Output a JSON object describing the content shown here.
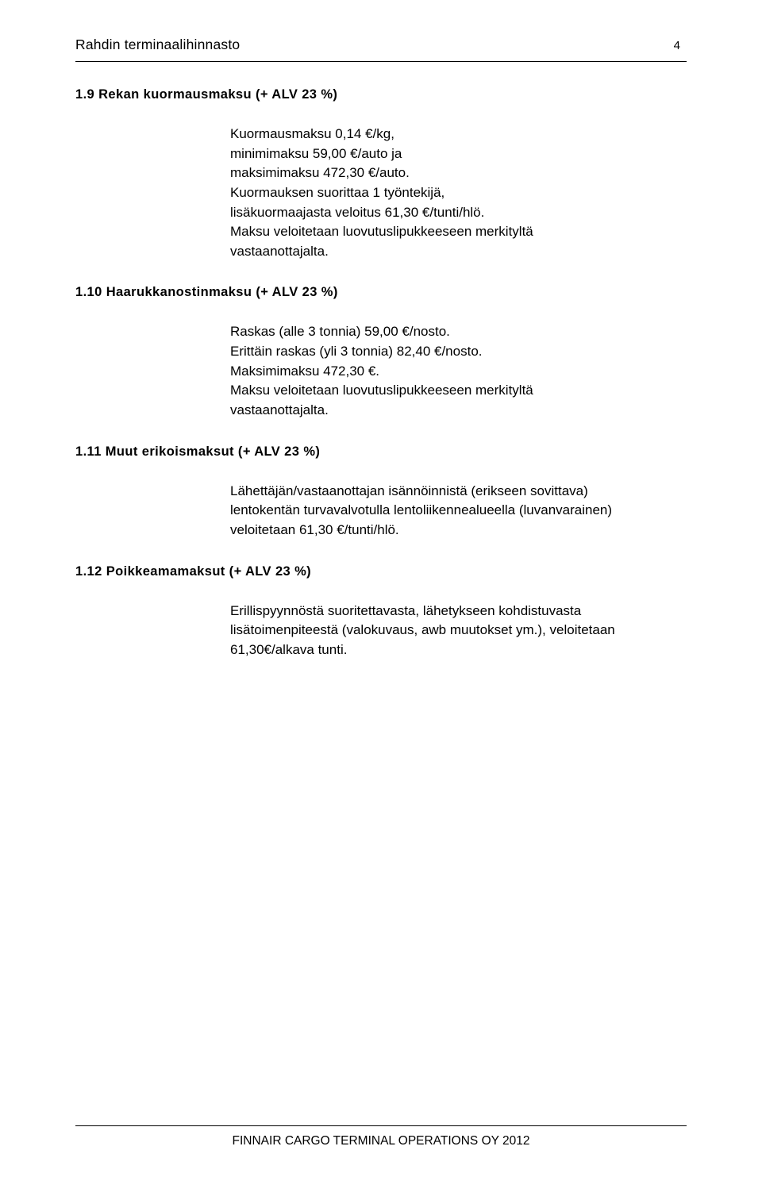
{
  "header": {
    "title": "Rahdin terminaalihinnasto",
    "page_number": "4"
  },
  "sections": [
    {
      "heading": "1.9 Rekan kuormausmaksu (+ ALV 23 %)",
      "body": "Kuormausmaksu 0,14 €/kg,\nminimimaksu 59,00 €/auto ja\nmaksimimaksu 472,30 €/auto.\nKuormauksen suorittaa 1 työntekijä,\nlisäkuormaajasta veloitus 61,30 €/tunti/hlö.\nMaksu veloitetaan luovutuslipukkeeseen merkityltä\nvastaanottajalta."
    },
    {
      "heading": "1.10 Haarukkanostinmaksu (+ ALV 23 %)",
      "body": "Raskas (alle 3 tonnia) 59,00 €/nosto.\nErittäin raskas (yli 3 tonnia) 82,40 €/nosto.\nMaksimimaksu 472,30 €.\nMaksu veloitetaan luovutuslipukkeeseen merkityltä\nvastaanottajalta."
    },
    {
      "heading": "1.11 Muut erikoismaksut (+ ALV 23 %)",
      "body": "Lähettäjän/vastaanottajan isännöinnistä (erikseen sovittava)\nlentokentän turvavalvotulla lentoliikennealueella (luvanvarainen)\nveloitetaan 61,30 €/tunti/hlö."
    },
    {
      "heading": "1.12 Poikkeamamaksut (+ ALV 23 %)",
      "body": "Erillispyynnöstä suoritettavasta, lähetykseen kohdistuvasta\nlisätoimenpiteestä (valokuvaus, awb muutokset ym.), veloitetaan\n61,30€/alkava tunti."
    }
  ],
  "footer": {
    "text": "FINNAIR CARGO TERMINAL OPERATIONS OY 2012"
  }
}
